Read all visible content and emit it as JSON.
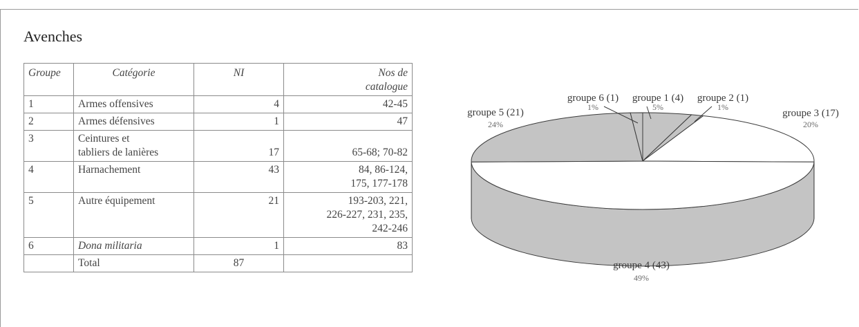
{
  "title": "Avenches",
  "table": {
    "headers": {
      "groupe": "Groupe",
      "categorie": "Catégorie",
      "ni": "NI",
      "catalogue_sup": "Nos de",
      "catalogue_sub": "catalogue"
    },
    "rows": [
      {
        "groupe": "1",
        "categorie": "Armes offensives",
        "ni": "4",
        "catalogue": "42-45"
      },
      {
        "groupe": "2",
        "categorie": "Armes défensives",
        "ni": "1",
        "catalogue": "47"
      },
      {
        "groupe": "3",
        "categorie": "Ceintures et\ntabliers de lanières",
        "ni": "17",
        "catalogue": "\n65-68; 70-82"
      },
      {
        "groupe": "4",
        "categorie": "Harnachement",
        "ni": "43",
        "catalogue": "84, 86-124,\n175, 177-178"
      },
      {
        "groupe": "5",
        "categorie": "Autre équipement",
        "ni": "21",
        "catalogue": "193-203, 221,\n226-227, 231, 235,\n242-246"
      },
      {
        "groupe": "6",
        "categorie": "Dona militaria",
        "ni": "1",
        "catalogue": "83"
      },
      {
        "groupe": "",
        "categorie": "Total",
        "ni": "87",
        "catalogue": ""
      }
    ]
  },
  "chart_data": {
    "type": "pie",
    "style": "3d",
    "colors": {
      "gray": "#c4c4c4",
      "white": "#ffffff"
    },
    "slices": [
      {
        "label": "groupe 1 (4)",
        "value": 4,
        "percent": "5%",
        "color": "gray"
      },
      {
        "label": "groupe 2 (1)",
        "value": 1,
        "percent": "1%",
        "color": "gray"
      },
      {
        "label": "groupe 3 (17)",
        "value": 17,
        "percent": "20%",
        "color": "white"
      },
      {
        "label": "groupe 4 (43)",
        "value": 43,
        "percent": "49%",
        "color": "white"
      },
      {
        "label": "groupe 5 (21)",
        "value": 21,
        "percent": "24%",
        "color": "gray"
      },
      {
        "label": "groupe 6 (1)",
        "value": 1,
        "percent": "1%",
        "color": "gray"
      }
    ]
  }
}
